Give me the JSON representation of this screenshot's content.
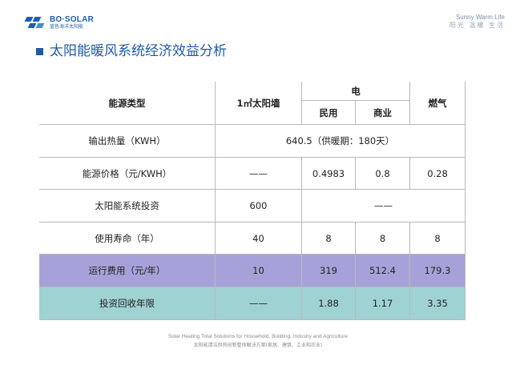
{
  "brand": {
    "logo_en": "BO·SOLAR",
    "logo_cn": "蓝色海洋太阳能",
    "slogan_en": "Sunny Warm Life",
    "slogan_cn": "阳光 温暖 生活",
    "accent_color": "#1f5aa8"
  },
  "page": {
    "title": "太阳能暖风系统经济效益分析"
  },
  "table": {
    "header": {
      "energy_type": "能源类型",
      "solar_wall": "1㎡太阳墙",
      "electric": "电",
      "residential": "民用",
      "commercial": "商业",
      "gas": "燃气"
    },
    "rows": [
      {
        "label": "输出热量（KWH）",
        "merged_value": "640.5（供暖期：180天）"
      },
      {
        "label": "能源价格（元/KWH）",
        "solar": "——",
        "residential": "0.4983",
        "commercial": "0.8",
        "gas": "0.28"
      },
      {
        "label": "太阳能系统投资",
        "solar": "600",
        "others": "——"
      },
      {
        "label": "使用寿命（年）",
        "solar": "40",
        "residential": "8",
        "commercial": "8",
        "gas": "8"
      },
      {
        "label": "运行费用（元/年）",
        "solar": "10",
        "residential": "319",
        "commercial": "512.4",
        "gas": "179.3"
      },
      {
        "label": "投资回收年限",
        "solar": "——",
        "residential": "1.88",
        "commercial": "1.17",
        "gas": "3.35"
      }
    ],
    "colors": {
      "operating_cost_row": "#a6a2d9",
      "payback_row": "#9fd2d3",
      "grid": "#b9b9b9"
    }
  },
  "footer": {
    "en": "Solar Heating Total Solutions for Household, Building, Industry and Agriculture",
    "cn": "太阳能清洁供热创新整体解决方案(家居、建筑、工业和农业)"
  }
}
